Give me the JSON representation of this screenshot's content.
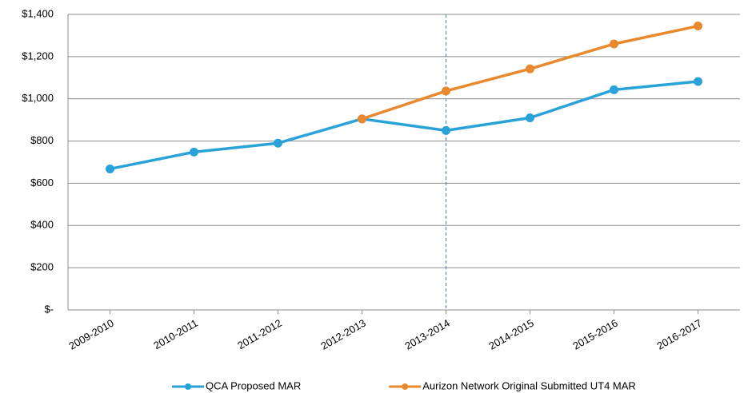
{
  "chart_data": {
    "type": "line",
    "categories": [
      "2009-2010",
      "2010-2011",
      "2011-2012",
      "2012-2013",
      "2013-2014",
      "2014-2015",
      "2015-2016",
      "2016-2017"
    ],
    "series": [
      {
        "name": "QCA Proposed MAR",
        "color": "#29a2d9",
        "values": [
          668,
          748,
          790,
          905,
          850,
          910,
          1043,
          1082
        ]
      },
      {
        "name": "Aurizon Network Original Submitted UT4 MAR",
        "color": "#e8892d",
        "values": [
          null,
          null,
          null,
          905,
          1037,
          1142,
          1260,
          1345
        ]
      }
    ],
    "ylim": [
      0,
      1400
    ],
    "yticks": [
      {
        "value": 0,
        "label": "$-"
      },
      {
        "value": 200,
        "label": "$200"
      },
      {
        "value": 400,
        "label": "$400"
      },
      {
        "value": 600,
        "label": "$600"
      },
      {
        "value": 800,
        "label": "$800"
      },
      {
        "value": 1000,
        "label": "$1,000"
      },
      {
        "value": 1200,
        "label": "$1,200"
      },
      {
        "value": 1400,
        "label": "$1,400"
      }
    ],
    "grid": true,
    "legend": "bottom"
  }
}
